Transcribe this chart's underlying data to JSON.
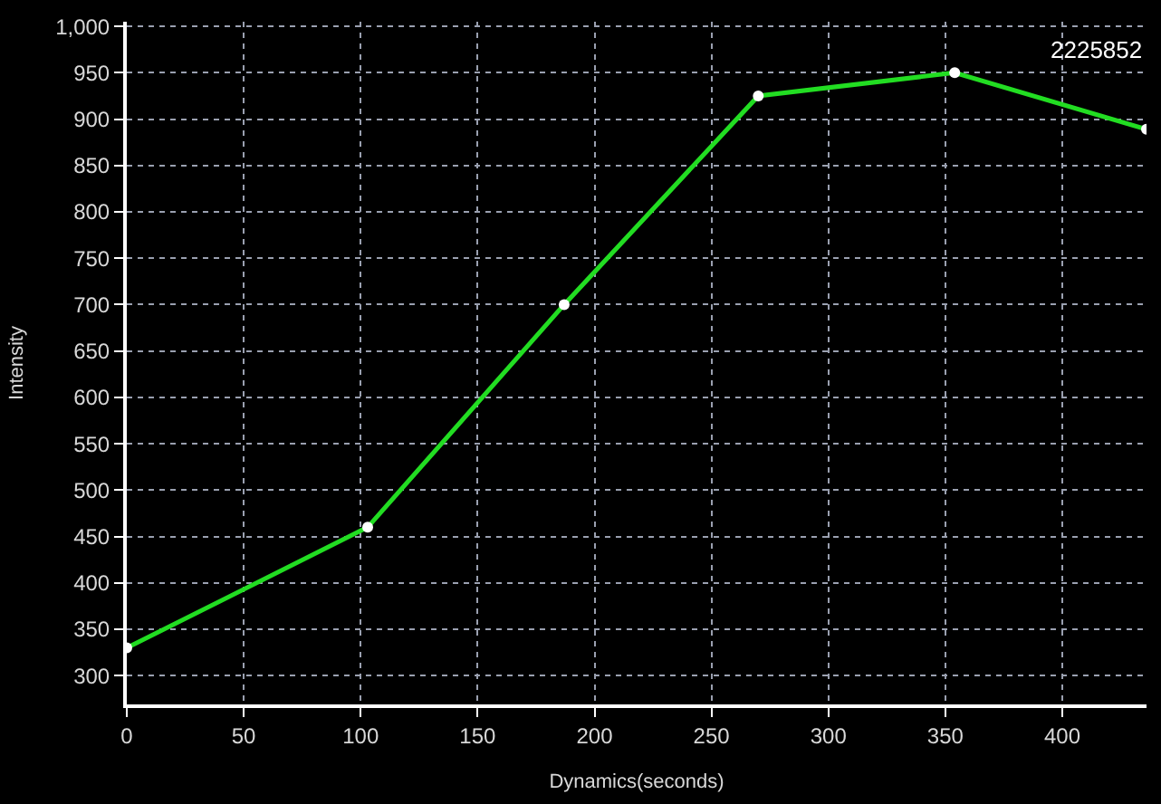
{
  "chart_data": {
    "type": "line",
    "xlabel": "Dynamics(seconds)",
    "ylabel": "Intensity",
    "x": [
      0,
      103,
      187,
      270,
      354,
      436
    ],
    "series": [
      {
        "color": "#22dd22",
        "values": [
          330,
          460,
          700,
          925,
          950,
          889
        ]
      }
    ],
    "xlim": [
      0,
      436
    ],
    "ylim": [
      269,
      1005
    ],
    "xticks": [
      0,
      50,
      100,
      150,
      200,
      250,
      300,
      350,
      400
    ],
    "yticks": [
      300,
      350,
      400,
      450,
      500,
      550,
      600,
      650,
      700,
      750,
      800,
      850,
      900,
      950,
      {
        "value": 1000,
        "label": "1,000"
      }
    ],
    "grid": true,
    "marker": "circle",
    "line_style": "solid",
    "annotations": [
      "2225852"
    ]
  }
}
